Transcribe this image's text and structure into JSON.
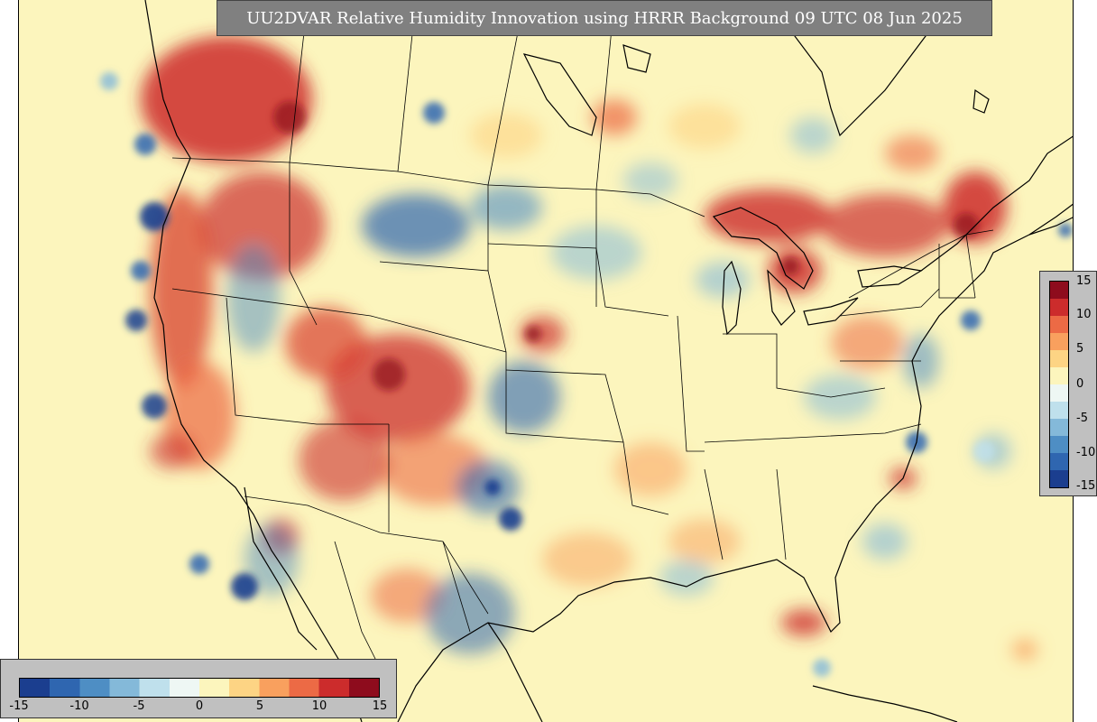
{
  "title": "UU2DVAR Relative Humidity Innovation using HRRR Background 09 UTC 08 Jun 2025",
  "colors": {
    "background": "#fcf5bd",
    "title_box": "#808080",
    "panel": "#c0c0c0",
    "colormap": [
      "#1b3e8f",
      "#2f66b0",
      "#4e8ec4",
      "#84b9d9",
      "#bfe0ec",
      "#eef7f4",
      "#fcf5bd",
      "#fdd484",
      "#f9a05e",
      "#ec6a45",
      "#cc2c2c",
      "#8e0c1d"
    ]
  },
  "colorbar": {
    "min": -15,
    "max": 15,
    "right_ticks": [
      "15",
      "10",
      "5",
      "0",
      "-5",
      "-10",
      "-15"
    ],
    "bottom_ticks": [
      "-15",
      "-10",
      "-5",
      "0",
      "5",
      "10",
      "15"
    ]
  }
}
